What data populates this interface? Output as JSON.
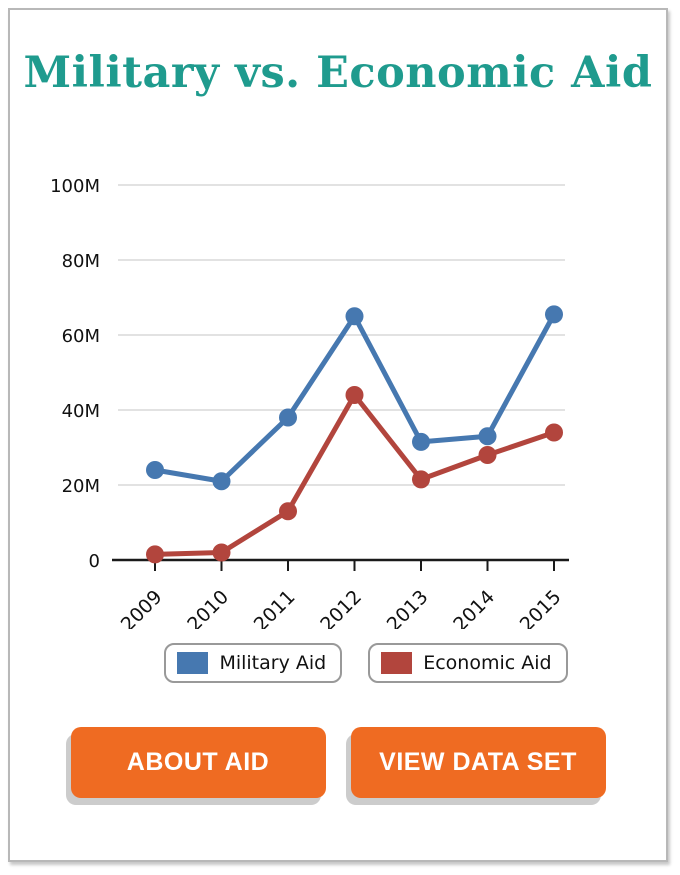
{
  "card": {
    "title": "Military vs. Economic Aid"
  },
  "chart_data": {
    "type": "line",
    "title": "Military vs. Economic Aid",
    "categories": [
      "2009",
      "2010",
      "2011",
      "2012",
      "2013",
      "2014",
      "2015"
    ],
    "series": [
      {
        "name": "Military Aid",
        "color": "#4678b0",
        "values": [
          24,
          21,
          38,
          65,
          31.5,
          33,
          65.5
        ]
      },
      {
        "name": "Economic Aid",
        "color": "#b2453d",
        "values": [
          1.5,
          2,
          13,
          44,
          21.5,
          28,
          34
        ]
      }
    ],
    "xlabel": "",
    "ylabel": "",
    "ylim": [
      0,
      100
    ],
    "y_ticks": [
      {
        "value": 100,
        "label": "100M"
      },
      {
        "value": 80,
        "label": "80M"
      },
      {
        "value": 60,
        "label": "60M"
      },
      {
        "value": 40,
        "label": "40M"
      },
      {
        "value": 20,
        "label": "20M"
      },
      {
        "value": 0,
        "label": "0"
      }
    ],
    "grid": true,
    "legend_position": "bottom"
  },
  "buttons": {
    "about": "ABOUT AID",
    "view_data": "VIEW DATA SET"
  },
  "colors": {
    "title": "#1f9b8e",
    "military_line": "#4678b0",
    "economic_line": "#b2453d",
    "button_bg": "#ef6b22",
    "button_text": "#ffffff",
    "gridline": "#d8d8d8",
    "axis": "#1a1a1a",
    "card_border": "#b8b8b8"
  }
}
